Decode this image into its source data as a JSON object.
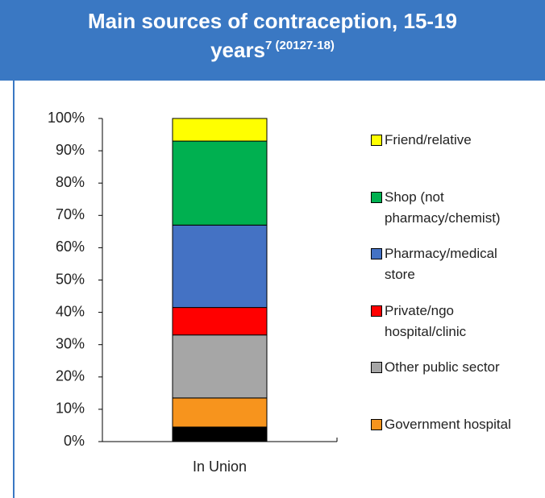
{
  "chart_data": {
    "type": "stacked_bar",
    "title": "Main sources of contraception, 15-19 years",
    "title_note": "7 (20127-18)",
    "categories": [
      "In Union"
    ],
    "series": [
      {
        "name": null,
        "color": "#000000",
        "values": [
          4.5
        ]
      },
      {
        "name": "Government hospital",
        "color": "#f7941d",
        "values": [
          9
        ]
      },
      {
        "name": "Other public sector",
        "color": "#a6a6a6",
        "values": [
          19.5
        ]
      },
      {
        "name": "Private/ngo hospital/clinic",
        "color": "#ff0000",
        "values": [
          8.5
        ]
      },
      {
        "name": "Pharmacy/medical store",
        "color": "#4472c4",
        "values": [
          25.5
        ]
      },
      {
        "name": "Shop (not pharmacy/chemist)",
        "color": "#00b050",
        "values": [
          26
        ]
      },
      {
        "name": "Friend/relative",
        "color": "#ffff00",
        "values": [
          7
        ]
      }
    ],
    "ylim": [
      0,
      100
    ],
    "yticks": [
      {
        "value": 0,
        "label": "0%"
      },
      {
        "value": 10,
        "label": "10%"
      },
      {
        "value": 20,
        "label": "20%"
      },
      {
        "value": 30,
        "label": "30%"
      },
      {
        "value": 40,
        "label": "40%"
      },
      {
        "value": 50,
        "label": "50%"
      },
      {
        "value": 60,
        "label": "60%"
      },
      {
        "value": 70,
        "label": "70%"
      },
      {
        "value": 80,
        "label": "80%"
      },
      {
        "value": 90,
        "label": "90%"
      },
      {
        "value": 100,
        "label": "100%"
      }
    ],
    "legend": "right"
  }
}
